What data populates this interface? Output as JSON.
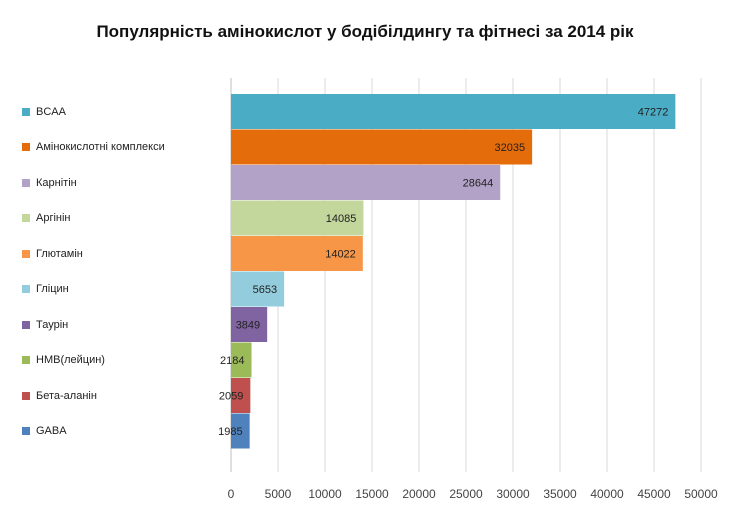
{
  "chart_data": {
    "type": "bar",
    "orientation": "horizontal",
    "title": "Популярність амінокислот у бодібілдингу та фітнесі за 2014 рік",
    "categories": [
      "BCAA",
      "Амінокислотні комплекси",
      "Карнітін",
      "Аргінін",
      "Глютамін",
      "Гліцин",
      "Таурін",
      "HMB(лейцин)",
      "Бета-аланін",
      "GABA"
    ],
    "values": [
      47272,
      32035,
      28644,
      14085,
      14022,
      5653,
      3849,
      2184,
      2059,
      1985
    ],
    "colors": [
      "#4BACC6",
      "#E46C0A",
      "#B3A2C7",
      "#C3D69B",
      "#F79646",
      "#93CDDD",
      "#8064A2",
      "#9BBB59",
      "#C0504D",
      "#4F81BD"
    ],
    "xlim": [
      0,
      50000
    ],
    "xticks": [
      "0",
      "5000",
      "10000",
      "15000",
      "20000",
      "25000",
      "30000",
      "35000",
      "40000",
      "45000",
      "50000"
    ],
    "xlabel": "",
    "ylabel": "",
    "grid": true,
    "legend": "left"
  }
}
